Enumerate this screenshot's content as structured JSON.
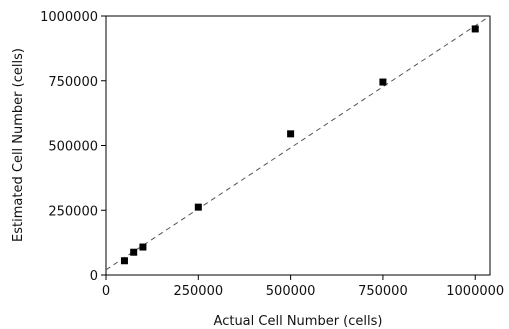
{
  "chart_data": {
    "type": "scatter",
    "xlabel": "Actual Cell Number (cells)",
    "ylabel": "Estimated Cell Number (cells)",
    "xlim": [
      0,
      1040000
    ],
    "ylim": [
      0,
      1000000
    ],
    "x_ticks": [
      0,
      250000,
      500000,
      750000,
      1000000
    ],
    "y_ticks": [
      0,
      250000,
      500000,
      750000,
      1000000
    ],
    "x_tick_labels": [
      "0",
      "250000",
      "500000",
      "750000",
      "1000000"
    ],
    "y_tick_labels": [
      "0",
      "250000",
      "500000",
      "750000",
      "1000000"
    ],
    "grid": false,
    "series": [
      {
        "marker": "square",
        "color": "#000000",
        "points": [
          {
            "x": 50000,
            "y": 55000
          },
          {
            "x": 75000,
            "y": 88000
          },
          {
            "x": 100000,
            "y": 108000
          },
          {
            "x": 250000,
            "y": 262000
          },
          {
            "x": 500000,
            "y": 545000
          },
          {
            "x": 750000,
            "y": 745000
          },
          {
            "x": 1000000,
            "y": 950000
          }
        ]
      }
    ],
    "reference_line": {
      "style": "dashed",
      "color": "#555555",
      "from": [
        0,
        20000
      ],
      "to": [
        1040000,
        1000000
      ]
    }
  }
}
